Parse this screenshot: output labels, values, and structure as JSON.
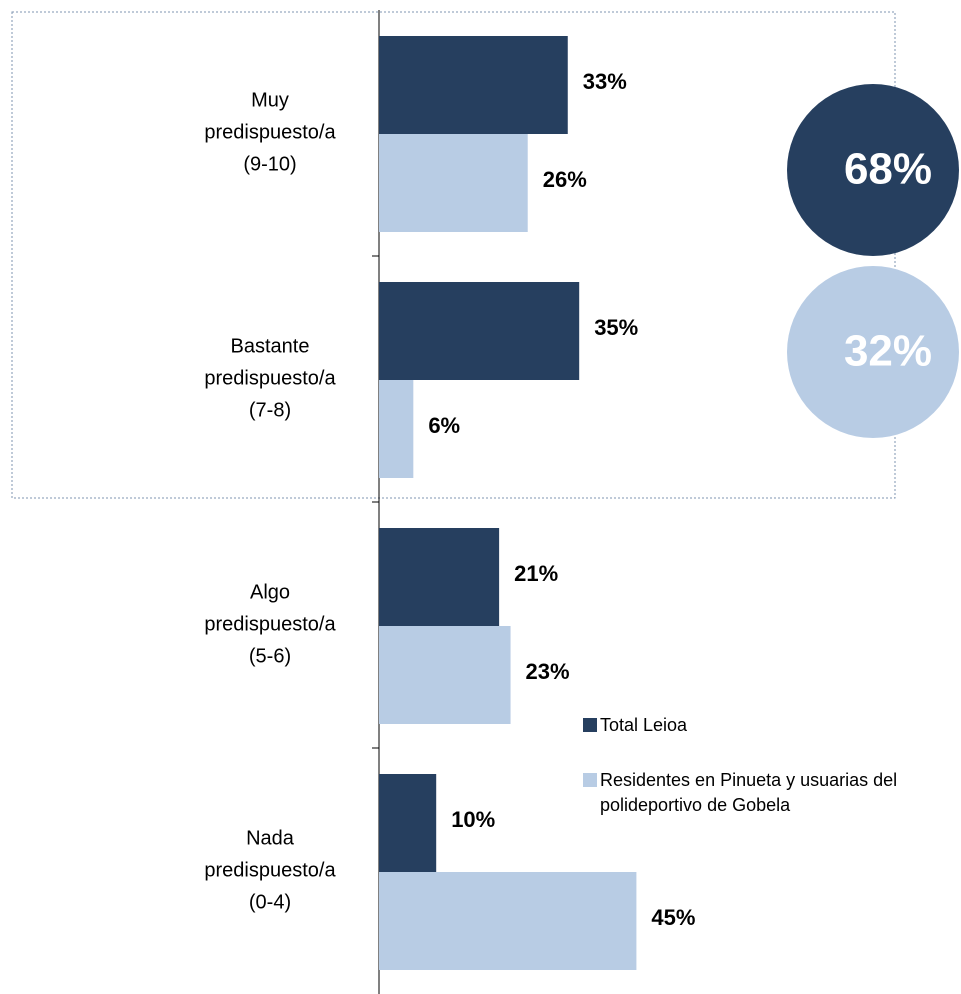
{
  "chart_data": {
    "type": "hbar",
    "categories": [
      [
        "Muy",
        "predispuesto/a",
        "(9-10)"
      ],
      [
        "Bastante",
        "predispuesto/a",
        "(7-8)"
      ],
      [
        "Algo",
        "predispuesto/a",
        "(5-6)"
      ],
      [
        "Nada",
        "predispuesto/a",
        "(0-4)"
      ]
    ],
    "series": [
      {
        "name": "Total Leioa",
        "color": "#263f5f",
        "values": [
          33,
          35,
          21,
          10
        ],
        "value_labels": [
          "33%",
          "35%",
          "21%",
          "10%"
        ]
      },
      {
        "name": "Residentes en Pinueta y usuarias del polideportivo de Gobela",
        "color": "#b8cce4",
        "values": [
          26,
          6,
          23,
          45
        ],
        "value_labels": [
          "26%",
          "6%",
          "23%",
          "45%"
        ]
      }
    ],
    "annotations": [
      {
        "label": "68%",
        "color": "#263f5f"
      },
      {
        "label": "32%",
        "color": "#b8cce4"
      }
    ],
    "legend": "right"
  }
}
